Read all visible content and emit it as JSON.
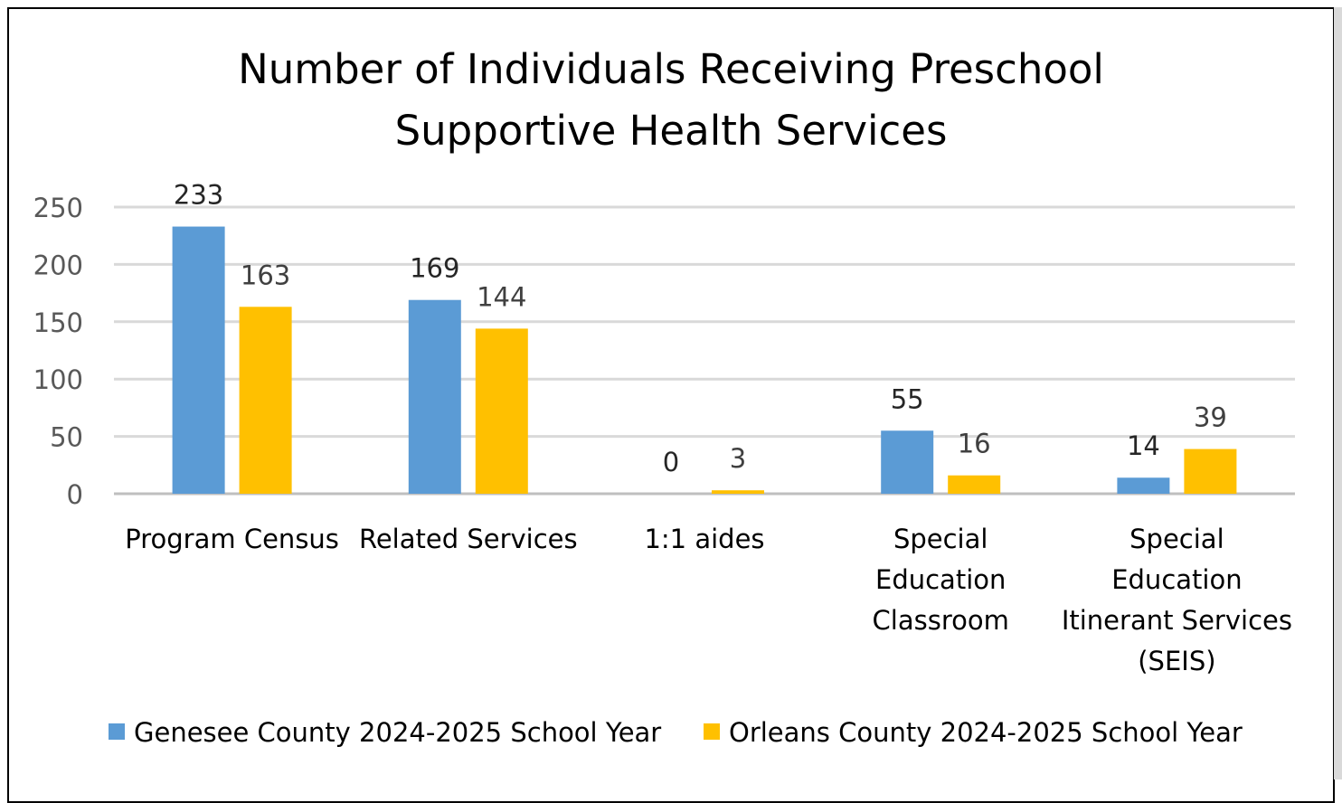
{
  "chart_data": {
    "type": "bar",
    "title_lines": [
      "Number of Individuals Receiving Preschool",
      "Supportive Health Services"
    ],
    "categories": [
      [
        "Program Census"
      ],
      [
        "Related Services"
      ],
      [
        "1:1 aides"
      ],
      [
        "Special",
        "Education",
        "Classroom"
      ],
      [
        "Special",
        "Education",
        "Itinerant Services",
        "(SEIS)"
      ]
    ],
    "series": [
      {
        "name": "Genesee County 2024-2025 School Year",
        "color": "#5b9bd5",
        "values": [
          233,
          169,
          0,
          55,
          14
        ]
      },
      {
        "name": "Orleans County 2024-2025 School Year",
        "color": "#ffc000",
        "values": [
          163,
          144,
          3,
          16,
          39
        ]
      }
    ],
    "y_ticks": [
      0,
      50,
      100,
      150,
      200,
      250
    ],
    "ylim": [
      0,
      250
    ],
    "grid": true,
    "legend_position": "bottom"
  }
}
